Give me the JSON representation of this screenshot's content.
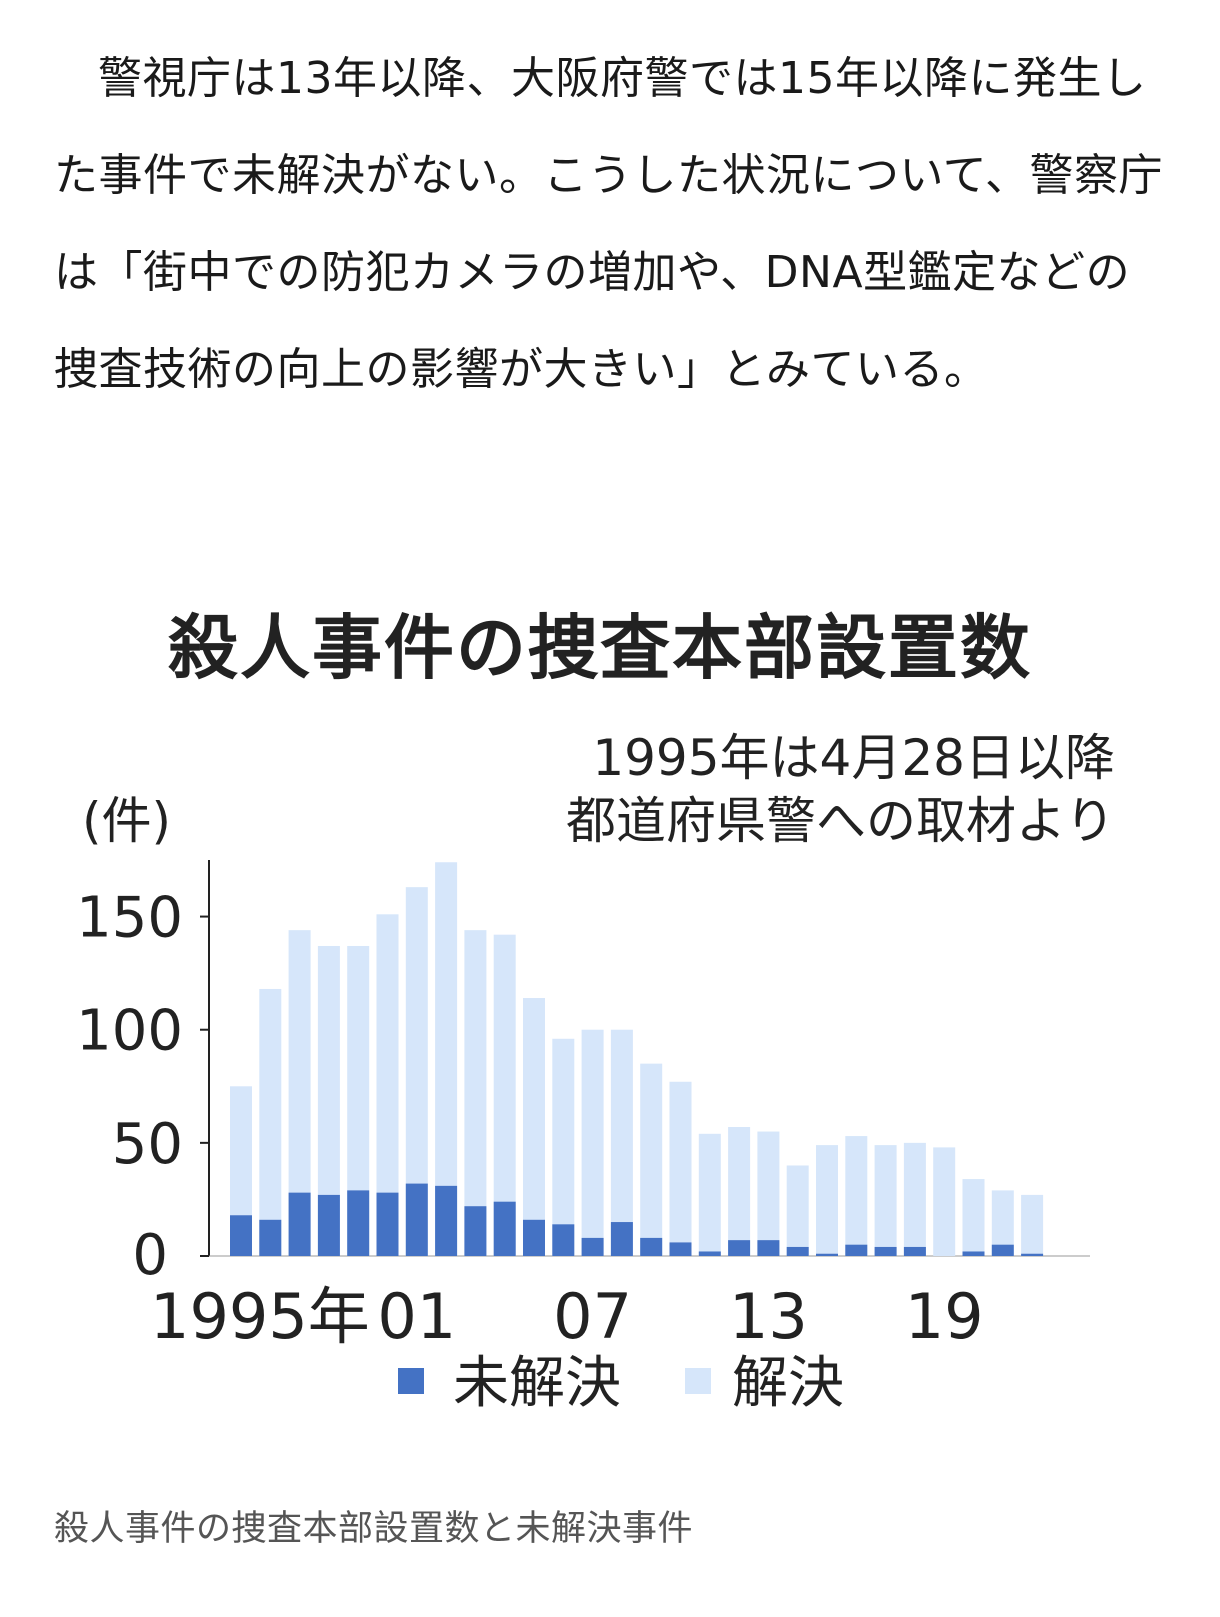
{
  "article": {
    "paragraph": "警視庁は13年以降、大阪府警では15年以降に発生した事件で未解決がない。こうした状況について、警察庁は「街中での防犯カメラの増加や、DNA型鑑定などの捜査技術の向上の影響が大きい」とみている。"
  },
  "figure": {
    "caption": "殺人事件の捜査本部設置数と未解決事件"
  },
  "chart_data": {
    "type": "bar",
    "stacked": true,
    "title": "殺人事件の捜査本部設置数",
    "note_line1": "1995年は4月28日以降",
    "note_line2": "都道府県警への取材より",
    "ylabel": "(件)",
    "xlabel": "",
    "ylim": [
      0,
      175
    ],
    "yticks": [
      0,
      50,
      100,
      150
    ],
    "xtick_labels": [
      {
        "index": 0,
        "label": "1995年"
      },
      {
        "index": 6,
        "label": "01"
      },
      {
        "index": 12,
        "label": "07"
      },
      {
        "index": 18,
        "label": "13"
      },
      {
        "index": 24,
        "label": "19"
      }
    ],
    "categories": [
      "1995",
      "1996",
      "1997",
      "1998",
      "1999",
      "2000",
      "2001",
      "2002",
      "2003",
      "2004",
      "2005",
      "2006",
      "2007",
      "2008",
      "2009",
      "2010",
      "2011",
      "2012",
      "2013",
      "2014",
      "2015",
      "2016",
      "2017",
      "2018",
      "2019",
      "2020",
      "2021",
      "2022"
    ],
    "series": [
      {
        "name": "未解決",
        "color": "#4472c4",
        "values": [
          18,
          16,
          28,
          27,
          29,
          28,
          32,
          31,
          22,
          24,
          16,
          14,
          8,
          15,
          8,
          6,
          2,
          7,
          7,
          4,
          1,
          5,
          4,
          4,
          0,
          2,
          5,
          1
        ]
      },
      {
        "name": "解決",
        "color": "#d6e6fa",
        "values": [
          57,
          102,
          116,
          110,
          108,
          123,
          131,
          143,
          122,
          118,
          98,
          82,
          92,
          85,
          77,
          71,
          52,
          50,
          48,
          36,
          48,
          48,
          45,
          46,
          48,
          32,
          24,
          26
        ]
      }
    ],
    "legend_position": "bottom",
    "grid": false
  }
}
